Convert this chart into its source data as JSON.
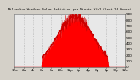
{
  "title": "Milwaukee Weather Solar Radiation per Minute W/m2 (Last 24 Hours)",
  "bg_color": "#d4d0c8",
  "plot_bg_color": "#e8e8e8",
  "fill_color": "#ff0000",
  "line_color": "#cc0000",
  "grid_color": "#aaaaaa",
  "y_max": 900,
  "y_min": 0,
  "num_points": 1440,
  "peak_hour": 13.2,
  "peak_value": 860,
  "sunrise": 5.8,
  "sunset": 20.5
}
